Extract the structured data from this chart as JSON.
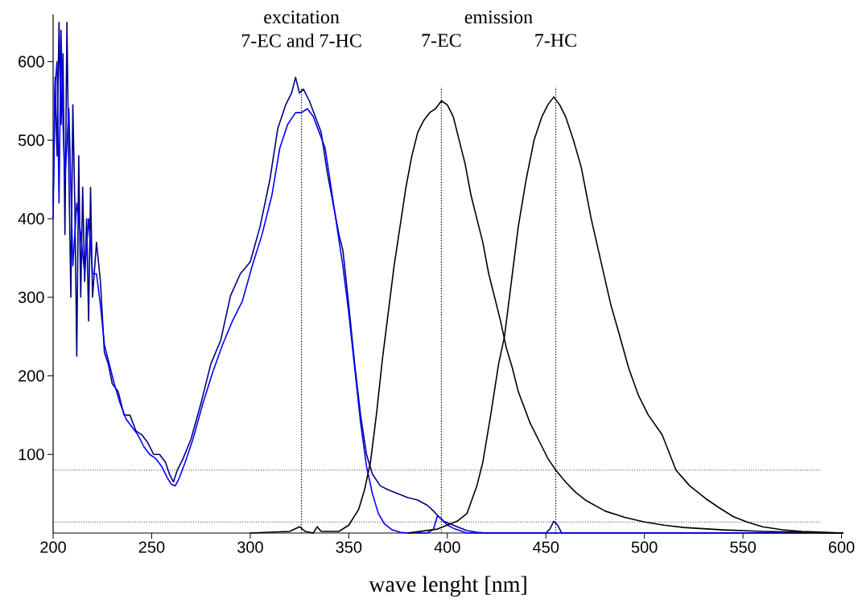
{
  "chart_data": {
    "type": "line",
    "xlabel": "wave lenght [nm]",
    "xlim": [
      200,
      601
    ],
    "ylim": [
      0,
      660
    ],
    "xticks": [
      200,
      250,
      300,
      350,
      400,
      450,
      500,
      550,
      600
    ],
    "yticks": [
      100,
      200,
      300,
      400,
      500,
      600
    ],
    "grid": false,
    "marker": "none",
    "line_style": "solid",
    "series": [
      {
        "color": "#000080",
        "x": [
          200,
          201,
          202,
          203,
          204,
          205,
          206,
          207,
          208,
          209,
          210,
          211,
          212,
          213,
          214,
          215,
          216,
          217,
          218,
          219,
          220,
          222,
          224,
          226,
          228,
          230,
          233,
          236,
          239,
          242,
          245,
          248,
          251,
          254,
          257,
          259,
          261,
          263,
          266,
          270,
          275,
          280,
          285,
          290,
          295,
          300,
          305,
          310,
          314,
          318,
          321,
          323,
          325,
          327,
          330,
          333,
          336,
          339,
          342,
          345,
          347,
          350,
          353,
          356,
          359,
          362,
          366,
          370,
          375,
          380,
          385,
          390,
          393,
          396,
          398,
          401,
          405,
          410,
          415,
          420,
          450,
          452,
          454,
          456,
          458,
          500,
          601
        ],
        "values": [
          420,
          580,
          480,
          650,
          520,
          610,
          380,
          650,
          460,
          300,
          545,
          420,
          225,
          480,
          300,
          440,
          320,
          400,
          270,
          440,
          300,
          370,
          320,
          230,
          215,
          190,
          180,
          150,
          150,
          130,
          125,
          115,
          100,
          100,
          90,
          75,
          65,
          80,
          95,
          120,
          165,
          215,
          245,
          302,
          330,
          345,
          390,
          450,
          515,
          545,
          560,
          580,
          560,
          565,
          550,
          530,
          510,
          460,
          420,
          380,
          360,
          290,
          215,
          150,
          100,
          75,
          60,
          55,
          50,
          45,
          42,
          35,
          28,
          20,
          15,
          12,
          8,
          3,
          1,
          0,
          0,
          5,
          15,
          10,
          0,
          0,
          0
        ]
      },
      {
        "color": "#0000ff",
        "x": [
          200,
          201,
          202,
          203,
          204,
          205,
          206,
          208,
          210,
          212,
          214,
          216,
          218,
          220,
          222,
          224,
          226,
          228,
          231,
          234,
          237,
          240,
          243,
          246,
          249,
          252,
          255,
          258,
          260,
          262,
          264,
          267,
          271,
          276,
          281,
          286,
          291,
          296,
          301,
          306,
          311,
          315,
          319,
          323,
          326,
          329,
          332,
          335,
          338,
          341,
          344,
          347,
          350,
          353,
          356,
          359,
          362,
          365,
          368,
          372,
          376,
          380,
          390,
          393,
          395,
          397,
          400,
          404,
          410,
          601
        ],
        "values": [
          400,
          570,
          600,
          420,
          640,
          520,
          450,
          540,
          340,
          420,
          380,
          330,
          400,
          330,
          330,
          290,
          240,
          220,
          190,
          165,
          145,
          135,
          125,
          110,
          100,
          95,
          85,
          70,
          62,
          60,
          70,
          90,
          120,
          165,
          205,
          240,
          270,
          295,
          340,
          380,
          430,
          490,
          520,
          535,
          535,
          540,
          530,
          510,
          490,
          440,
          390,
          340,
          280,
          210,
          140,
          85,
          50,
          25,
          12,
          4,
          1,
          0,
          0,
          5,
          22,
          18,
          10,
          5,
          0,
          0
        ]
      },
      {
        "color": "#000000",
        "x": [
          300,
          320,
          325,
          328,
          332,
          334,
          336,
          345,
          350,
          355,
          358,
          361,
          364,
          367,
          370,
          373,
          376,
          379,
          382,
          385,
          388,
          391,
          394,
          397,
          400,
          403,
          406,
          409,
          412,
          415,
          418,
          421,
          424,
          427,
          430,
          433,
          436,
          439,
          442,
          445,
          448,
          451,
          455,
          460,
          465,
          470,
          475,
          480,
          490,
          500,
          510,
          520,
          540,
          560,
          580,
          601
        ],
        "values": [
          0,
          2,
          8,
          2,
          0,
          8,
          2,
          2,
          10,
          30,
          55,
          90,
          150,
          220,
          280,
          340,
          390,
          440,
          480,
          510,
          525,
          535,
          540,
          550,
          545,
          530,
          500,
          470,
          430,
          400,
          370,
          330,
          300,
          270,
          235,
          210,
          180,
          160,
          140,
          125,
          110,
          95,
          80,
          65,
          52,
          42,
          35,
          28,
          20,
          14,
          10,
          7,
          4,
          2,
          1,
          0
        ]
      },
      {
        "color": "#000000",
        "x": [
          380,
          395,
          400,
          405,
          410,
          415,
          418,
          422,
          426,
          429,
          432,
          436,
          440,
          444,
          448,
          451,
          454,
          457,
          460,
          464,
          468,
          473,
          478,
          483,
          487,
          492,
          497,
          502,
          509,
          516,
          523,
          531,
          538,
          545,
          552,
          560,
          570,
          580,
          590,
          601
        ],
        "values": [
          0,
          5,
          10,
          15,
          25,
          60,
          90,
          150,
          215,
          250,
          310,
          390,
          450,
          500,
          530,
          545,
          555,
          545,
          530,
          500,
          465,
          400,
          345,
          290,
          255,
          210,
          175,
          150,
          125,
          80,
          60,
          44,
          32,
          21,
          14,
          8,
          4,
          2,
          1,
          0
        ]
      }
    ],
    "ref_lines": [
      {
        "axis": "x",
        "value": 326,
        "color": "#000000",
        "line_style": "dotted",
        "label": "7-EC and 7-HC"
      },
      {
        "axis": "x",
        "value": 397,
        "color": "#000000",
        "line_style": "dotted",
        "label": "7-EC"
      },
      {
        "axis": "x",
        "value": 455,
        "color": "#000000",
        "line_style": "dotted",
        "label": "7-HC"
      },
      {
        "axis": "y",
        "value": 80,
        "color": "#000000",
        "line_style": "dotted"
      },
      {
        "axis": "y",
        "value": 14,
        "color": "#000000",
        "line_style": "dotted"
      }
    ],
    "annotations": [
      "excitation",
      "emission"
    ]
  }
}
